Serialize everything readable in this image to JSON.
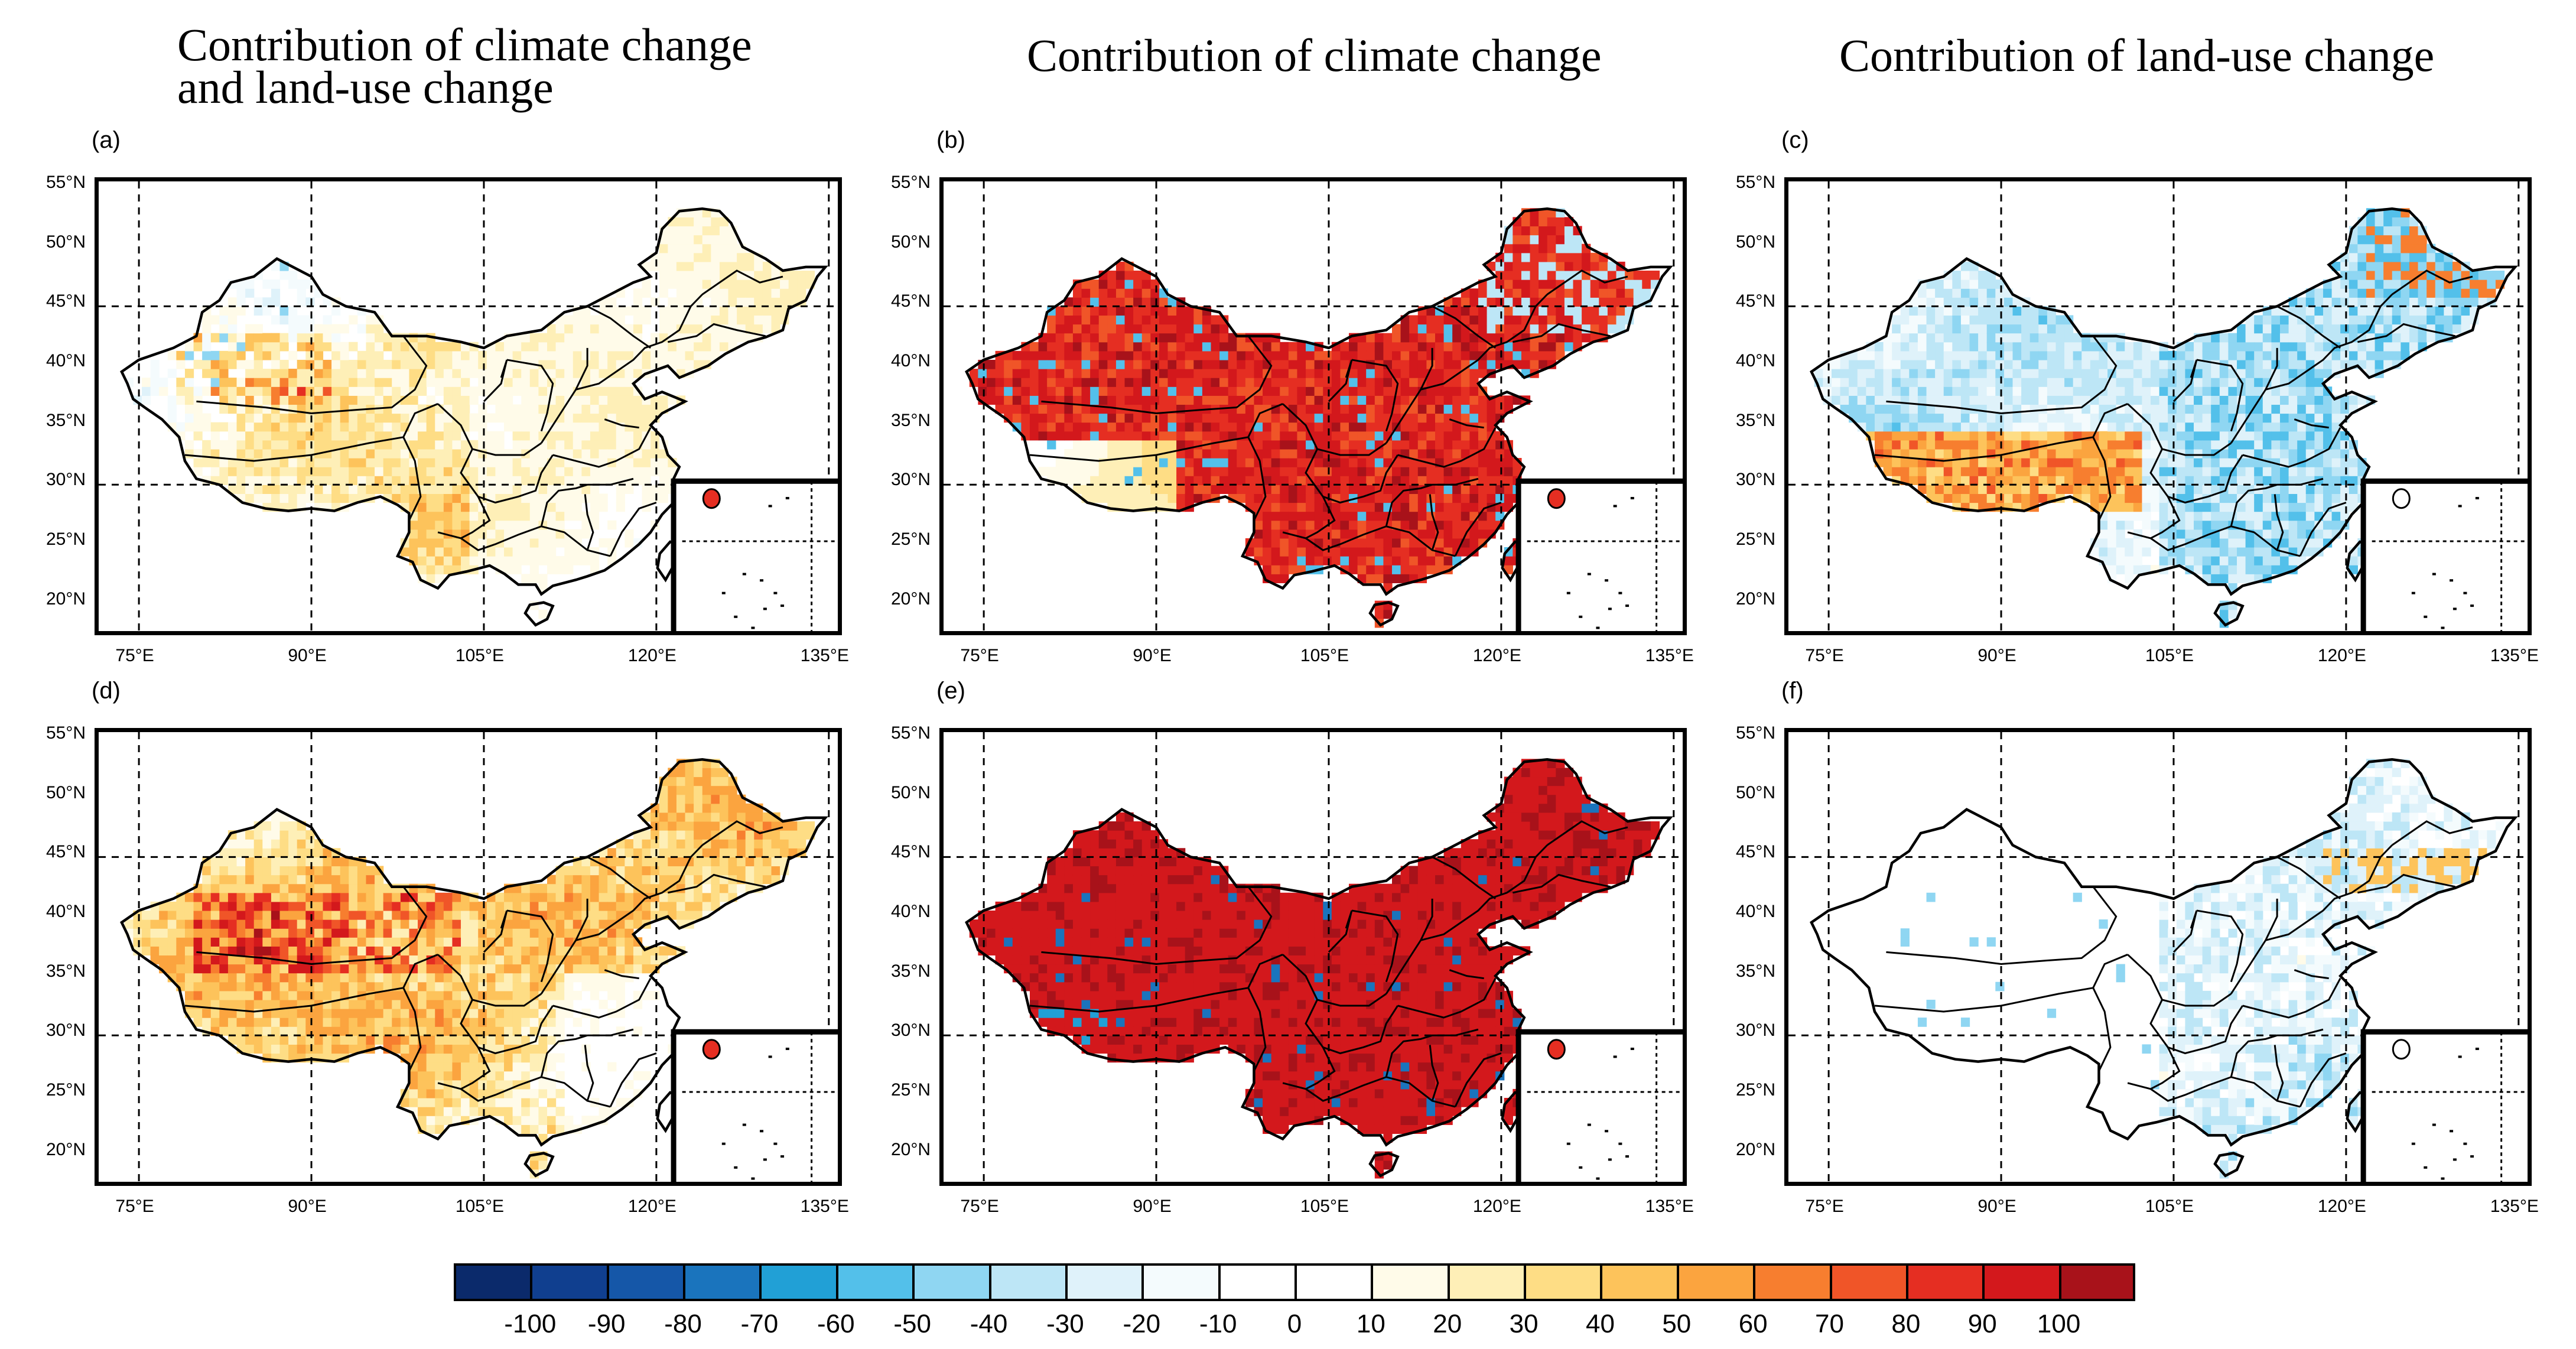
{
  "column_titles": [
    "Contribution of climate change\nand land-use change",
    "Contribution of climate change",
    "Contribution of land-use change"
  ],
  "panels": [
    {
      "label": "(a)",
      "theme": "combined"
    },
    {
      "label": "(b)",
      "theme": "climate"
    },
    {
      "label": "(c)",
      "theme": "landuse"
    },
    {
      "label": "(d)",
      "theme": "combined2"
    },
    {
      "label": "(e)",
      "theme": "climate2"
    },
    {
      "label": "(f)",
      "theme": "landuse2"
    }
  ],
  "lat_labels": [
    "55°N",
    "50°N",
    "45°N",
    "40°N",
    "35°N",
    "30°N",
    "25°N",
    "20°N"
  ],
  "lon_labels": [
    "75°E",
    "90°E",
    "105°E",
    "120°E",
    "135°E"
  ],
  "colorbar": {
    "labels": [
      "-100",
      "-90",
      "-80",
      "-70",
      "-60",
      "-50",
      "-40",
      "-30",
      "-20",
      "-10",
      "0",
      "10",
      "20",
      "30",
      "40",
      "50",
      "60",
      "70",
      "80",
      "90",
      "100"
    ],
    "colors": [
      "#0b2a6b",
      "#103f8f",
      "#1557a8",
      "#1a74bd",
      "#21a0d6",
      "#53c0ea",
      "#8fd6f2",
      "#bde6f6",
      "#dff2fa",
      "#f4fbfd",
      "#ffffff",
      "#fffbe9",
      "#feefb7",
      "#fedd85",
      "#fdc35b",
      "#fba43f",
      "#f77e2f",
      "#f05528",
      "#e52e22",
      "#d3181c",
      "#a8121a"
    ]
  }
}
